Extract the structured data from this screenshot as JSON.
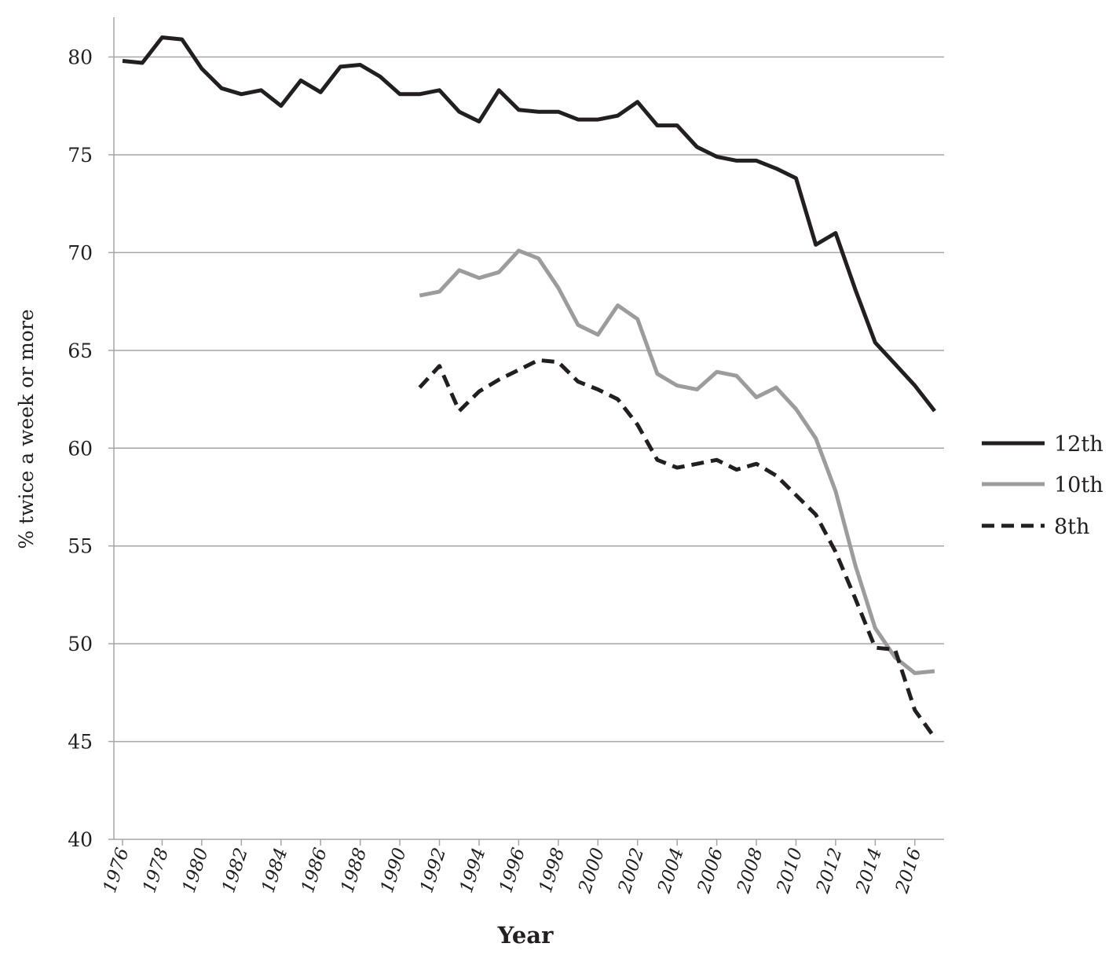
{
  "chart_data": {
    "type": "line",
    "title": "",
    "xlabel": "Year",
    "ylabel": "% twice a week or more",
    "xlim": [
      1976,
      2017
    ],
    "ylim": [
      40,
      82
    ],
    "yticks": [
      40,
      45,
      50,
      55,
      60,
      65,
      70,
      75,
      80
    ],
    "xticks": [
      1976,
      1978,
      1980,
      1982,
      1984,
      1986,
      1988,
      1990,
      1992,
      1994,
      1996,
      1998,
      2000,
      2002,
      2004,
      2006,
      2008,
      2010,
      2012,
      2014,
      2016
    ],
    "grid": "horizontal",
    "legend_position": "right",
    "series": [
      {
        "name": "12th",
        "color": "#231f20",
        "style": "solid",
        "x": [
          1976,
          1977,
          1978,
          1979,
          1980,
          1981,
          1982,
          1983,
          1984,
          1985,
          1986,
          1987,
          1988,
          1989,
          1990,
          1991,
          1992,
          1993,
          1994,
          1995,
          1996,
          1997,
          1998,
          1999,
          2000,
          2001,
          2002,
          2003,
          2004,
          2005,
          2006,
          2007,
          2008,
          2009,
          2010,
          2011,
          2012,
          2013,
          2014,
          2015,
          2016,
          2017
        ],
        "values": [
          79.8,
          79.7,
          81.0,
          80.9,
          79.4,
          78.4,
          78.1,
          78.3,
          77.5,
          78.8,
          78.2,
          79.5,
          79.6,
          79.0,
          78.1,
          78.1,
          78.3,
          77.2,
          76.7,
          78.3,
          77.3,
          77.2,
          77.2,
          76.8,
          76.8,
          77.0,
          77.7,
          76.5,
          76.5,
          75.4,
          74.9,
          74.7,
          74.7,
          74.3,
          73.8,
          70.4,
          71.0,
          68.1,
          65.4,
          64.3,
          63.2,
          61.9
        ]
      },
      {
        "name": "10th",
        "color": "#9c9c9c",
        "style": "solid",
        "x": [
          1991,
          1992,
          1993,
          1994,
          1995,
          1996,
          1997,
          1998,
          1999,
          2000,
          2001,
          2002,
          2003,
          2004,
          2005,
          2006,
          2007,
          2008,
          2009,
          2010,
          2011,
          2012,
          2013,
          2014,
          2015,
          2016,
          2017
        ],
        "values": [
          67.8,
          68.0,
          69.1,
          68.7,
          69.0,
          70.1,
          69.7,
          68.2,
          66.3,
          65.8,
          67.3,
          66.6,
          63.8,
          63.2,
          63.0,
          63.9,
          63.7,
          62.6,
          63.1,
          62.0,
          60.5,
          57.8,
          54.0,
          50.8,
          49.3,
          48.5,
          48.6
        ]
      },
      {
        "name": "8th",
        "color": "#231f20",
        "style": "dashed",
        "x": [
          1991,
          1992,
          1993,
          1994,
          1995,
          1996,
          1997,
          1998,
          1999,
          2000,
          2001,
          2002,
          2003,
          2004,
          2005,
          2006,
          2007,
          2008,
          2009,
          2010,
          2011,
          2012,
          2013,
          2014,
          2015,
          2016,
          2017
        ],
        "values": [
          63.1,
          64.2,
          61.9,
          62.9,
          63.5,
          64.0,
          64.5,
          64.4,
          63.4,
          63.0,
          62.5,
          61.2,
          59.4,
          59.0,
          59.2,
          59.4,
          58.9,
          59.2,
          58.6,
          57.6,
          56.6,
          54.7,
          52.3,
          49.8,
          49.7,
          46.6,
          45.2
        ]
      }
    ]
  }
}
